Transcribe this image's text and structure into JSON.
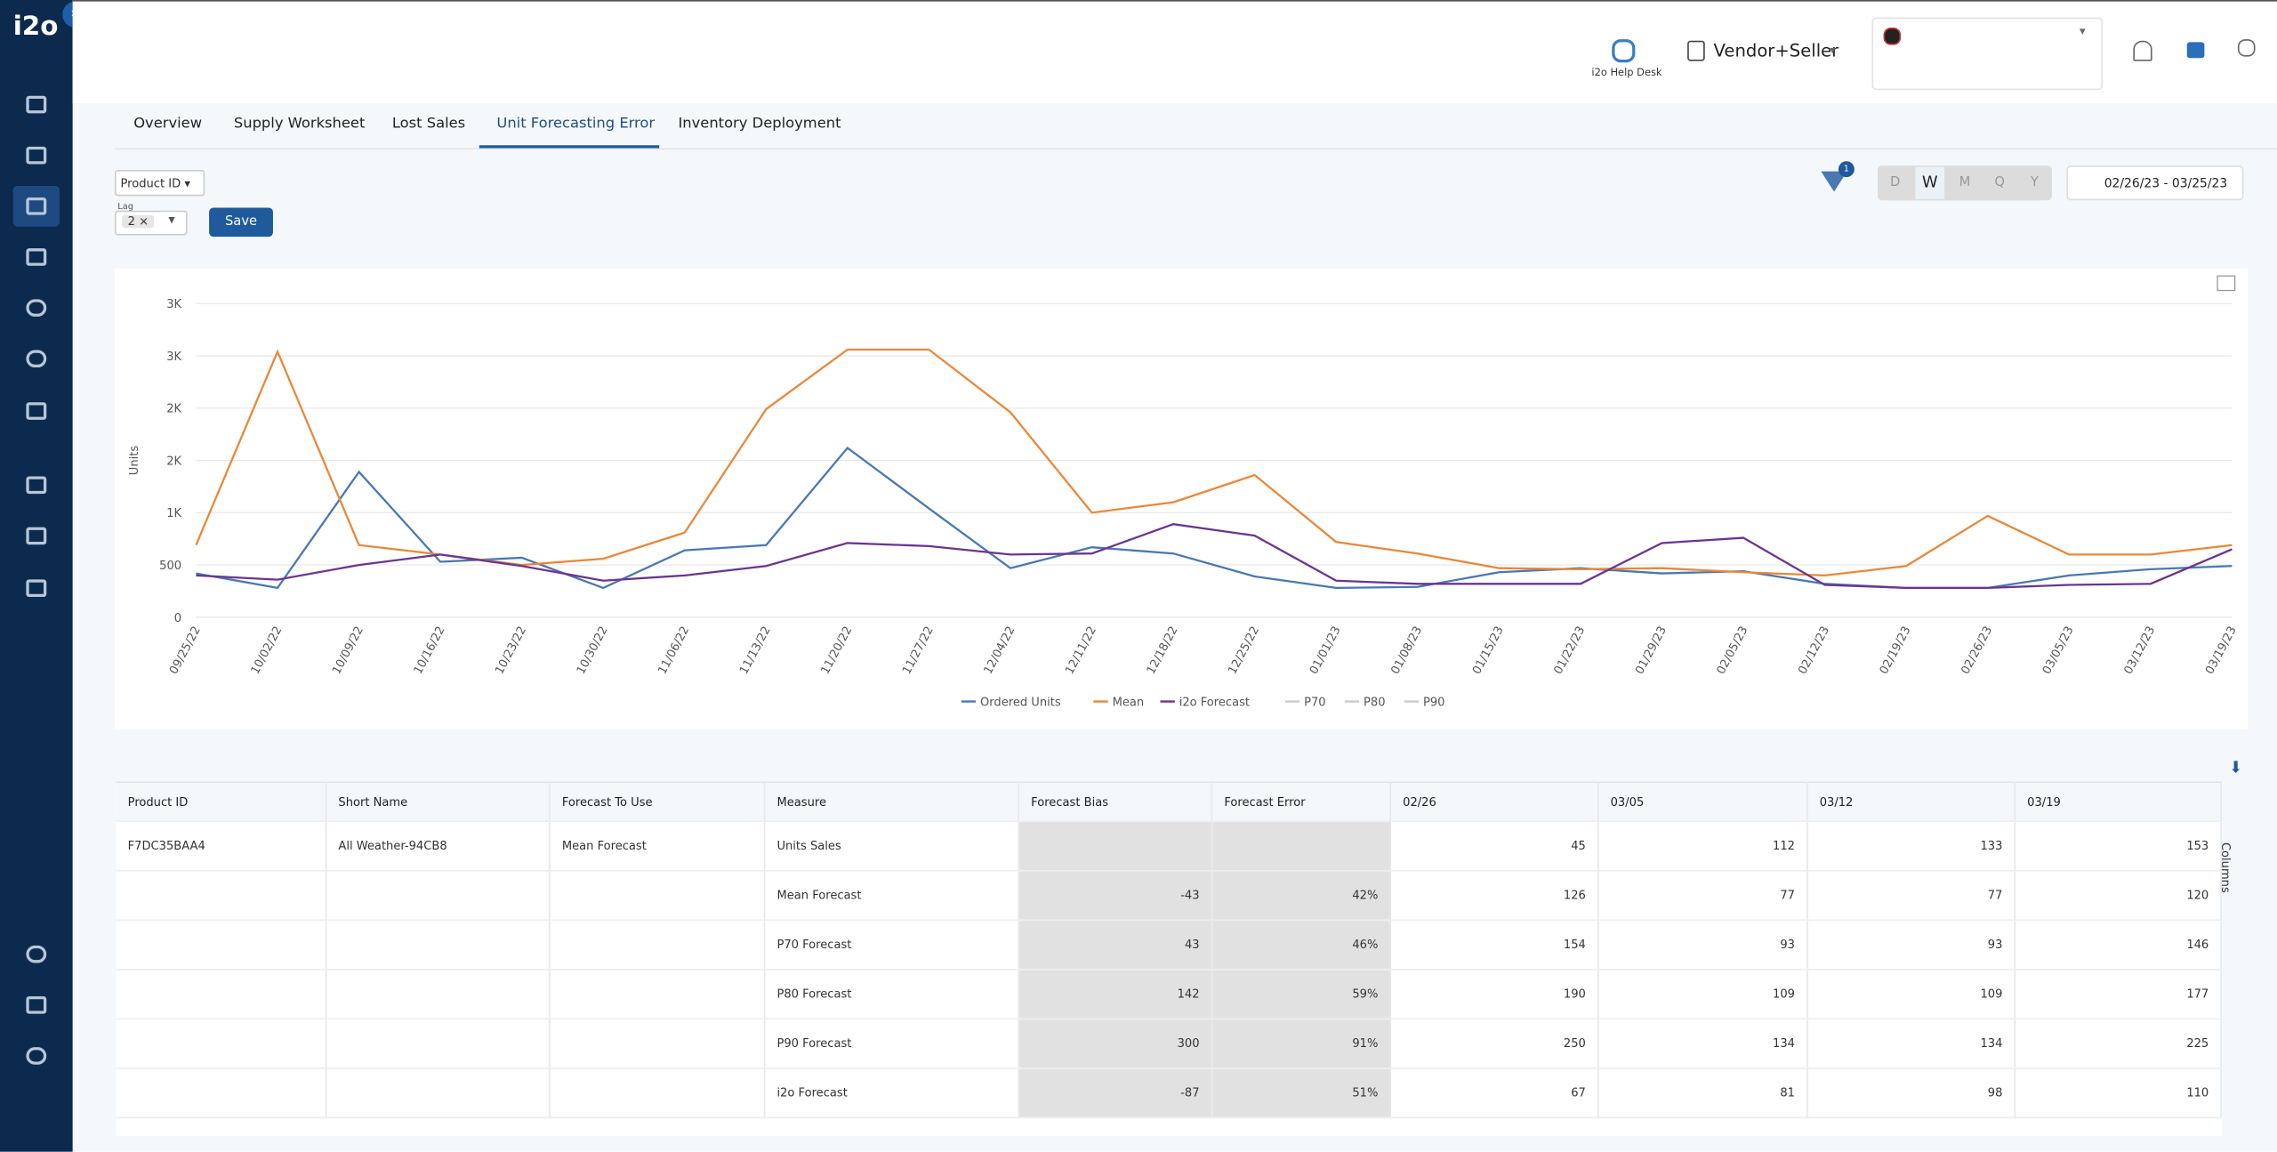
{
  "header": {
    "logo": "i2o",
    "help_desk": "i2o Help Desk",
    "account": "Vendor+Seller"
  },
  "tabs": [
    "Overview",
    "Supply Worksheet",
    "Lost Sales",
    "Unit Forecasting Error",
    "Inventory Deployment"
  ],
  "active_tab": 3,
  "filters": {
    "product": "Product ID",
    "lag_label": "Lag",
    "lag_value": "2",
    "save": "Save",
    "filter_count": "1",
    "periods": [
      "D",
      "W",
      "M",
      "Q",
      "Y"
    ],
    "active_period": 1,
    "date_range": "02/26/23 - 03/25/23"
  },
  "chart_data": {
    "type": "line",
    "y_label": "Units",
    "categories": [
      "09/25/22",
      "10/02/22",
      "10/09/22",
      "10/16/22",
      "10/23/22",
      "10/30/22",
      "11/06/22",
      "11/13/22",
      "11/20/22",
      "11/27/22",
      "12/04/22",
      "12/11/22",
      "12/18/22",
      "12/25/22",
      "01/01/23",
      "01/08/23",
      "01/15/23",
      "01/22/23",
      "01/29/23",
      "02/05/23",
      "02/12/23",
      "02/19/23",
      "02/26/23",
      "03/05/23",
      "03/12/23",
      "03/19/23"
    ],
    "series": [
      {
        "name": "Ordered Units",
        "color": "#4a78b0",
        "values": [
          420,
          280,
          1390,
          530,
          570,
          280,
          640,
          690,
          1620,
          1040,
          470,
          670,
          610,
          390,
          280,
          290,
          430,
          470,
          420,
          440,
          320,
          280,
          280,
          400,
          460,
          490
        ]
      },
      {
        "name": "Mean",
        "color": "#e8883a",
        "values": [
          690,
          2540,
          690,
          600,
          500,
          560,
          810,
          1990,
          2560,
          2560,
          1960,
          1000,
          1100,
          1360,
          720,
          610,
          470,
          460,
          470,
          430,
          400,
          490,
          970,
          600,
          600,
          690
        ]
      },
      {
        "name": "i2o Forecast",
        "color": "#6a3591",
        "values": [
          400,
          360,
          500,
          600,
          490,
          350,
          400,
          490,
          710,
          680,
          600,
          610,
          890,
          780,
          350,
          320,
          320,
          320,
          710,
          760,
          310,
          280,
          280,
          310,
          320,
          650
        ]
      }
    ],
    "hidden_series": [
      "P70",
      "P80",
      "P90"
    ],
    "ylim": [
      0,
      3000
    ],
    "yticks": [
      0,
      500,
      {
        "value": 1000,
        "label": "1K"
      },
      {
        "value": 1500,
        "label": "2K"
      },
      {
        "value": 2000,
        "label": "2K"
      },
      {
        "value": 2500,
        "label": "3K"
      },
      {
        "value": 3000,
        "label": "3K"
      }
    ],
    "grid": true,
    "legend": "bottom"
  },
  "table": {
    "columns": [
      "Product ID",
      "Short Name",
      "Forecast To Use",
      "Measure",
      "Forecast Bias",
      "Forecast Error",
      "02/26",
      "03/05",
      "03/12",
      "03/19"
    ],
    "rows": [
      [
        "F7DC35BAA4",
        "All Weather-94CB8",
        "Mean Forecast",
        "Units Sales",
        null,
        null,
        "45",
        "112",
        "133",
        "153"
      ],
      [
        null,
        null,
        null,
        "Mean Forecast",
        "-43",
        "42%",
        "126",
        "77",
        "77",
        "120"
      ],
      [
        null,
        null,
        null,
        "P70 Forecast",
        "43",
        "46%",
        "154",
        "93",
        "93",
        "146"
      ],
      [
        null,
        null,
        null,
        "P80 Forecast",
        "142",
        "59%",
        "190",
        "109",
        "109",
        "177"
      ],
      [
        null,
        null,
        null,
        "P90 Forecast",
        "300",
        "91%",
        "250",
        "134",
        "134",
        "225"
      ],
      [
        null,
        null,
        null,
        "i2o Forecast",
        "-87",
        "51%",
        "67",
        "81",
        "98",
        "110"
      ]
    ],
    "side_label": "Columns"
  }
}
